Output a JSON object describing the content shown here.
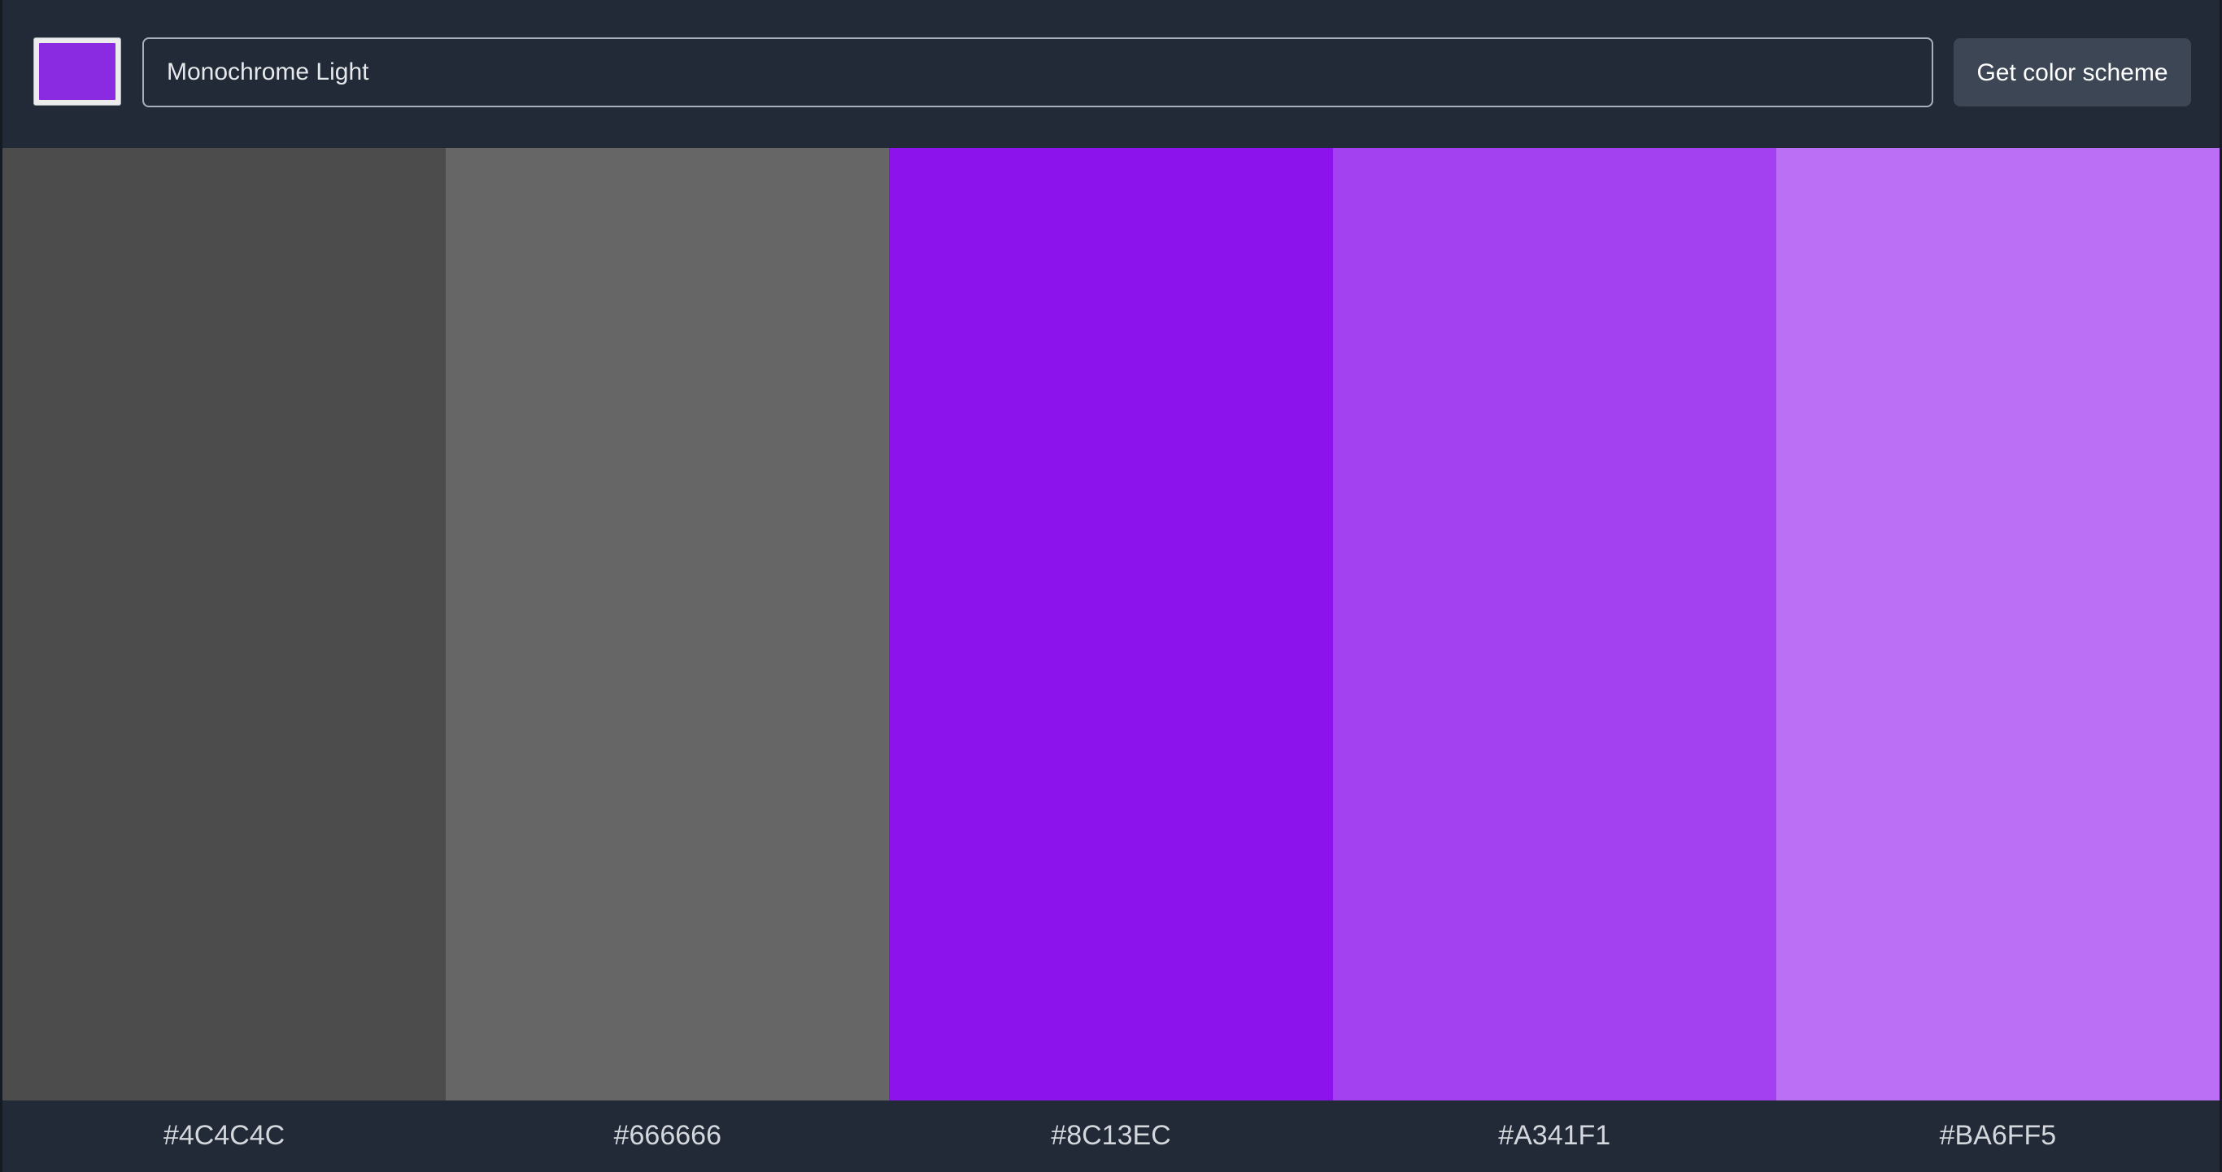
{
  "picker": {
    "color": "#8a2be2",
    "icon": "color-swatch"
  },
  "scheme": {
    "selected": "Monochrome Light"
  },
  "button": {
    "label": "Get color scheme"
  },
  "palette": [
    {
      "hex": "#4C4C4C",
      "color": "#4c4c4c"
    },
    {
      "hex": "#666666",
      "color": "#666666"
    },
    {
      "hex": "#8C13EC",
      "color": "#8c13ec"
    },
    {
      "hex": "#A341F1",
      "color": "#a341f1"
    },
    {
      "hex": "#BA6FF5",
      "color": "#ba6ff5"
    }
  ]
}
